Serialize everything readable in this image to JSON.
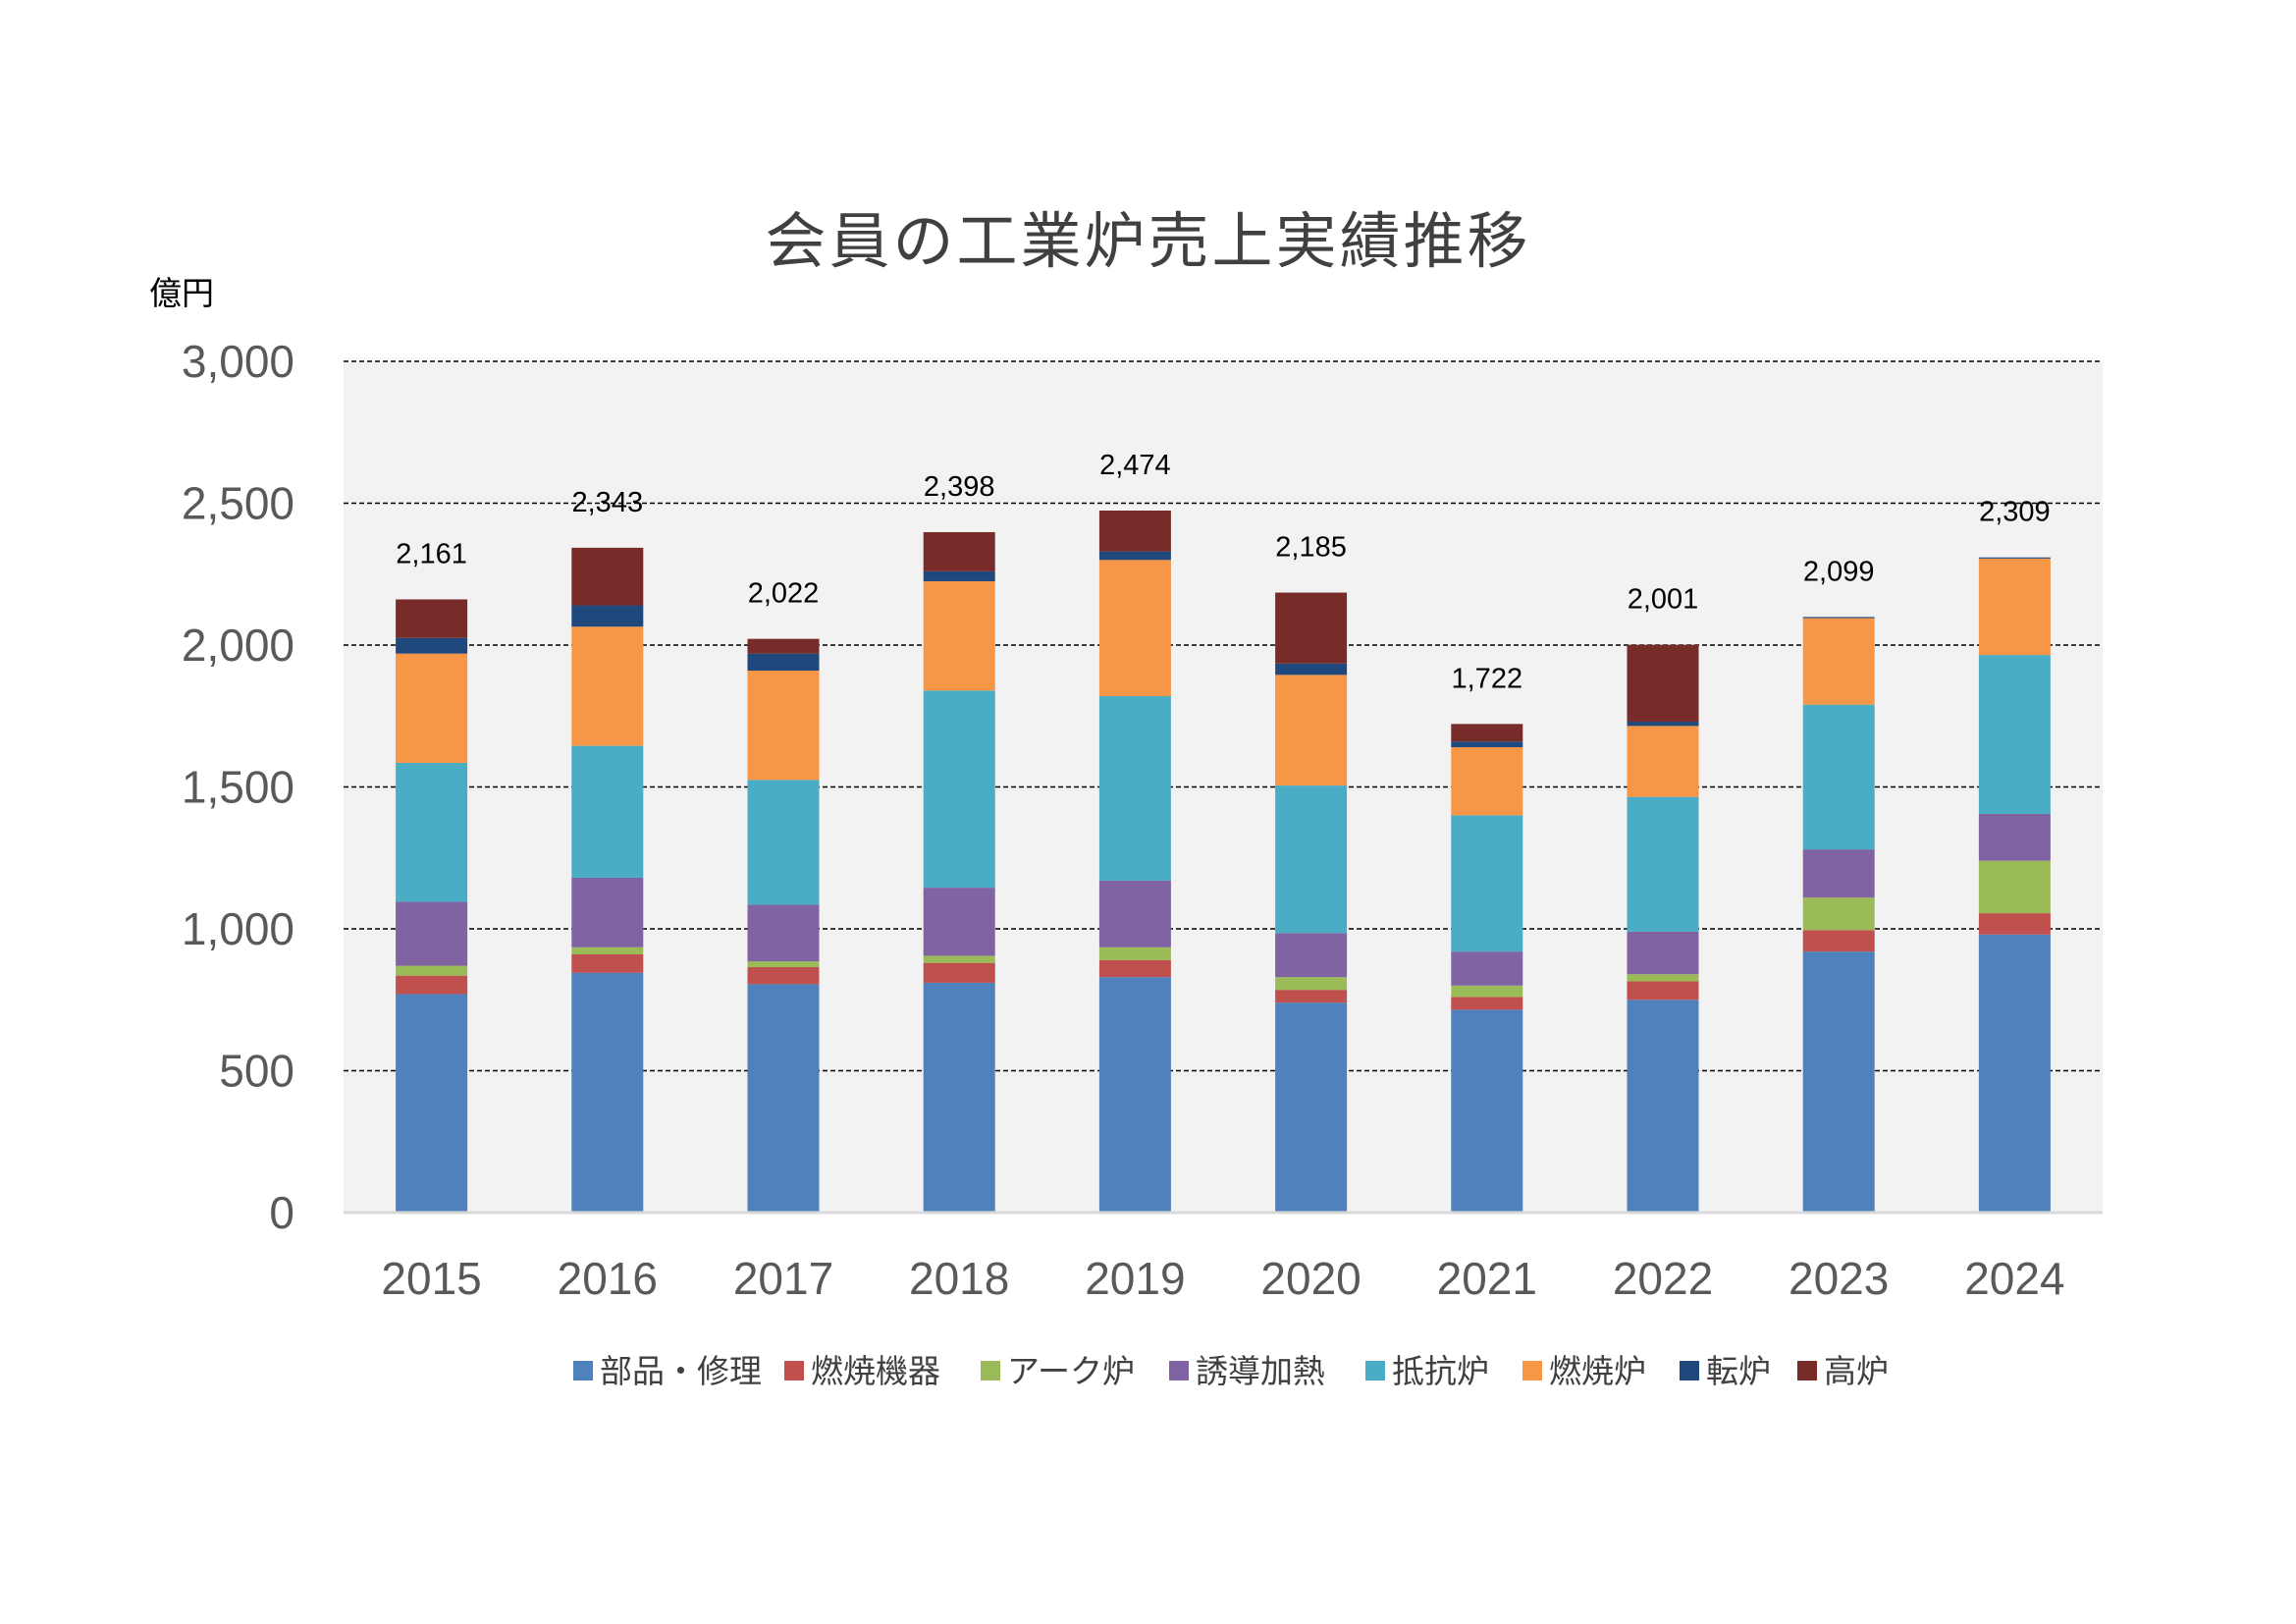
{
  "chart_data": {
    "type": "bar",
    "stacked": true,
    "title": "会員の工業炉売上実績推移",
    "unit_label": "億円",
    "categories": [
      "2015",
      "2016",
      "2017",
      "2018",
      "2019",
      "2020",
      "2021",
      "2022",
      "2023",
      "2024"
    ],
    "ylim": [
      0,
      3000
    ],
    "yticks": [
      0,
      500,
      1000,
      1500,
      2000,
      2500,
      3000
    ],
    "ytick_labels": [
      "0",
      "500",
      "1,000",
      "1,500",
      "2,000",
      "2,500",
      "3,000"
    ],
    "grid": true,
    "legend_position": "bottom",
    "totals": [
      "2,161",
      "2,343",
      "2,022",
      "2,398",
      "2,474",
      "2,185",
      "1,722",
      "2,001",
      "2,099",
      "2,309"
    ],
    "series": [
      {
        "name": "部品・修理",
        "color": "#4F81BD",
        "values": [
          770,
          845,
          805,
          810,
          830,
          740,
          715,
          750,
          920,
          980
        ]
      },
      {
        "name": "燃焼機器",
        "color": "#C0504D",
        "values": [
          65,
          65,
          60,
          70,
          60,
          45,
          45,
          65,
          75,
          75
        ]
      },
      {
        "name": "アーク炉",
        "color": "#9BBB59",
        "values": [
          35,
          25,
          20,
          25,
          45,
          45,
          40,
          25,
          115,
          185
        ]
      },
      {
        "name": "誘導加熱",
        "color": "#8064A2",
        "values": [
          225,
          245,
          200,
          240,
          235,
          155,
          120,
          150,
          170,
          165
        ]
      },
      {
        "name": "抵抗炉",
        "color": "#4BACC6",
        "values": [
          490,
          465,
          440,
          695,
          650,
          520,
          480,
          475,
          510,
          560
        ]
      },
      {
        "name": "燃焼炉",
        "color": "#F79646",
        "values": [
          385,
          420,
          385,
          385,
          480,
          390,
          240,
          250,
          305,
          340
        ]
      },
      {
        "name": "転炉",
        "color": "#1F497D",
        "values": [
          55,
          75,
          60,
          35,
          30,
          40,
          20,
          15,
          4,
          4
        ]
      },
      {
        "name": "高炉",
        "color": "#772C2A",
        "values": [
          136,
          203,
          52,
          138,
          144,
          250,
          62,
          271,
          0,
          0
        ]
      }
    ]
  }
}
